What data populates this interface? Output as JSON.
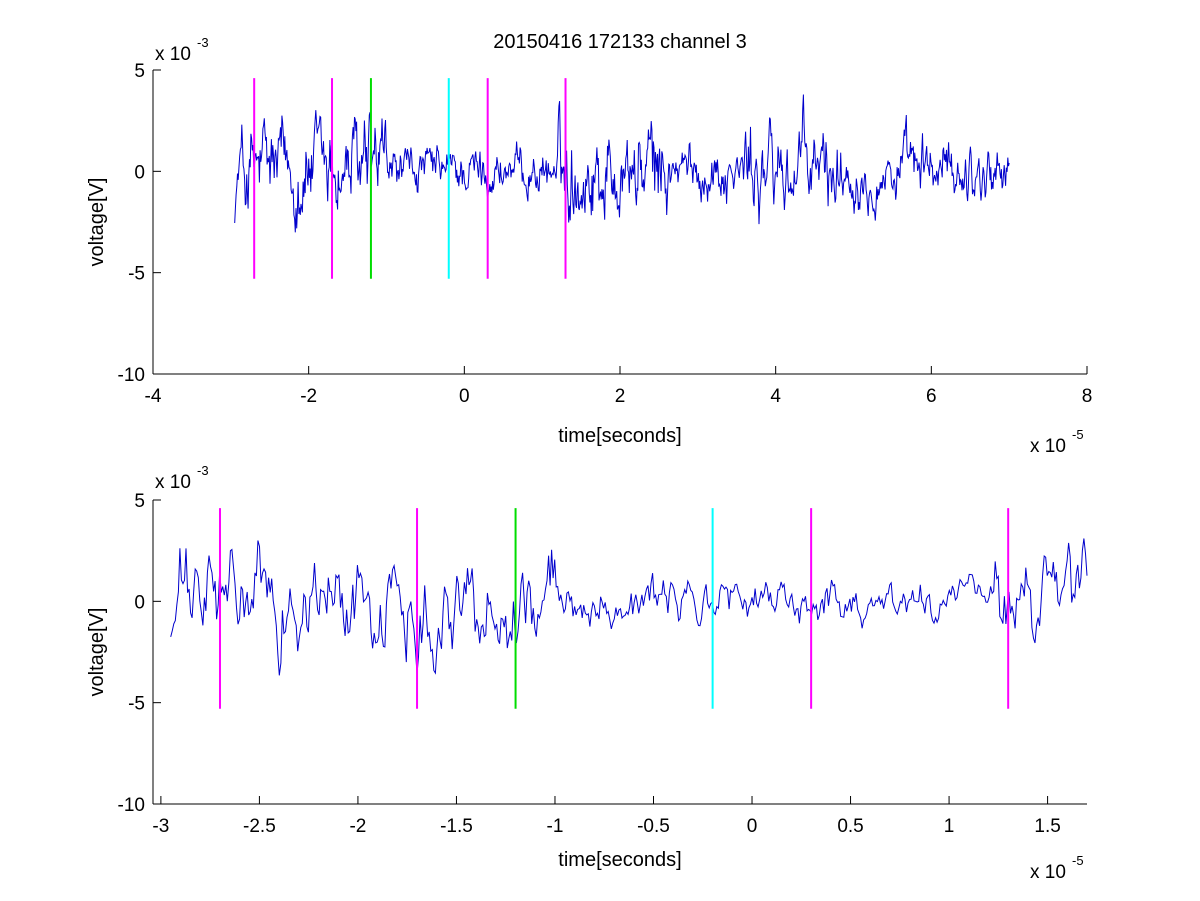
{
  "title": "20150416 172133 channel 3",
  "colors": {
    "signal": "#0000cc",
    "magenta": "#ff00ff",
    "green": "#00dd00",
    "cyan": "#00ffff",
    "axis": "#000000",
    "background": "#ffffff"
  },
  "chart_data": [
    {
      "type": "line",
      "xlabel": "time[seconds]",
      "ylabel": "voltage[V]",
      "xlim": [
        -4,
        8
      ],
      "ylim": [
        -10,
        5
      ],
      "xticks": [
        "-4",
        "-2",
        "0",
        "2",
        "4",
        "6",
        "8"
      ],
      "xtick_values": [
        -4,
        -2,
        0,
        2,
        4,
        6,
        8
      ],
      "yticks": [
        "-10",
        "-5",
        "0",
        "5"
      ],
      "ytick_values": [
        -10,
        -5,
        0,
        5
      ],
      "x_exponent": {
        "base": "x 10",
        "power": "-5"
      },
      "y_exponent": {
        "base": "x 10",
        "power": "-3"
      },
      "grid": false,
      "signal": {
        "x_range": [
          -2.95,
          7.0
        ],
        "points": 1100,
        "min": -4.9,
        "max": 4.1
      },
      "markers": [
        {
          "x": -2.7,
          "color": "magenta",
          "y_range": [
            -5.3,
            4.6
          ]
        },
        {
          "x": -1.7,
          "color": "magenta",
          "y_range": [
            -5.3,
            4.6
          ]
        },
        {
          "x": -1.2,
          "color": "green",
          "y_range": [
            -5.3,
            4.6
          ]
        },
        {
          "x": -0.2,
          "color": "cyan",
          "y_range": [
            -5.3,
            4.6
          ]
        },
        {
          "x": 0.3,
          "color": "magenta",
          "y_range": [
            -5.3,
            4.6
          ]
        },
        {
          "x": 1.3,
          "color": "magenta",
          "y_range": [
            -5.3,
            4.6
          ]
        }
      ]
    },
    {
      "type": "line",
      "xlabel": "time[seconds]",
      "ylabel": "voltage[V]",
      "xlim": [
        -3.04,
        1.7
      ],
      "ylim": [
        -10,
        5
      ],
      "xticks": [
        "-3",
        "-2.5",
        "-2",
        "-1.5",
        "-1",
        "-0.5",
        "0",
        "0.5",
        "1",
        "1.5"
      ],
      "xtick_values": [
        -3,
        -2.5,
        -2,
        -1.5,
        -1,
        -0.5,
        0,
        0.5,
        1,
        1.5
      ],
      "yticks": [
        "-10",
        "-5",
        "0",
        "5"
      ],
      "ytick_values": [
        -10,
        -5,
        0,
        5
      ],
      "x_exponent": {
        "base": "x 10",
        "power": "-5"
      },
      "y_exponent": {
        "base": "x 10",
        "power": "-3"
      },
      "grid": false,
      "signal": {
        "x_range": [
          -2.95,
          1.7
        ],
        "points": 600,
        "min": -4.9,
        "max": 3.1
      },
      "markers": [
        {
          "x": -2.7,
          "color": "magenta",
          "y_range": [
            -5.3,
            4.6
          ]
        },
        {
          "x": -1.7,
          "color": "magenta",
          "y_range": [
            -5.3,
            4.6
          ]
        },
        {
          "x": -1.2,
          "color": "green",
          "y_range": [
            -5.3,
            4.6
          ]
        },
        {
          "x": -0.2,
          "color": "cyan",
          "y_range": [
            -5.3,
            4.6
          ]
        },
        {
          "x": 0.3,
          "color": "magenta",
          "y_range": [
            -5.3,
            4.6
          ]
        },
        {
          "x": 1.3,
          "color": "magenta",
          "y_range": [
            -5.3,
            4.6
          ]
        }
      ]
    }
  ]
}
